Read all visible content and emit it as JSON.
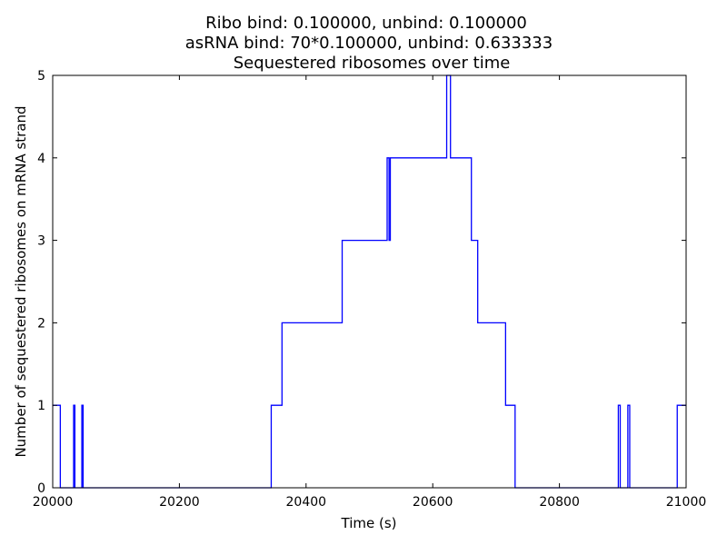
{
  "chart_data": {
    "type": "line",
    "title_lines": [
      "Ribo bind: 0.100000, unbind: 0.100000",
      "asRNA bind: 70*0.100000, unbind: 0.633333",
      "Sequestered ribosomes over time"
    ],
    "xlabel": "Time (s)",
    "ylabel": "Number of sequestered ribosomes on mRNA strand",
    "xlim": [
      20000,
      21000
    ],
    "ylim": [
      0,
      5
    ],
    "xticks": [
      20000,
      20200,
      20400,
      20600,
      20800,
      21000
    ],
    "yticks": [
      0,
      1,
      2,
      3,
      4,
      5
    ],
    "grid": false,
    "line_color": "#0000ff",
    "step": "post",
    "x": [
      20000,
      20012,
      20033,
      20035,
      20046,
      20048,
      20345,
      20362,
      20457,
      20528,
      20531,
      20533,
      20622,
      20625,
      20628,
      20661,
      20671,
      20715,
      20730,
      20893,
      20896,
      20908,
      20911,
      20986,
      21000
    ],
    "y": [
      1,
      0,
      1,
      0,
      1,
      0,
      1,
      2,
      3,
      4,
      3,
      4,
      5,
      5,
      4,
      3,
      2,
      1,
      0,
      1,
      0,
      1,
      0,
      1,
      1
    ]
  }
}
